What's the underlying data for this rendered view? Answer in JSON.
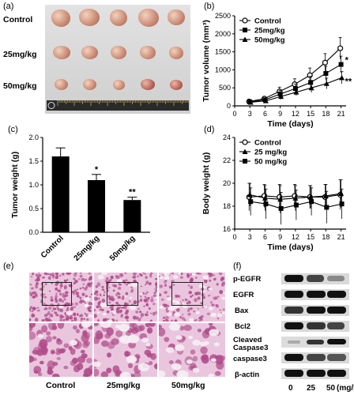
{
  "panels": {
    "a": {
      "label": "(a)",
      "rows": [
        "Control",
        "25mg/kg",
        "50mg/kg"
      ]
    },
    "b": {
      "label": "(b)"
    },
    "c": {
      "label": "(c)"
    },
    "d": {
      "label": "(d)"
    },
    "e": {
      "label": "(e)",
      "groups": [
        "Control",
        "25mg/kg",
        "50mg/kg"
      ]
    },
    "f": {
      "label": "(f)",
      "proteins": [
        "p-EGFR",
        "EGFR",
        "Bax",
        "Bcl2",
        "Cleaved\nCaspase3",
        "caspase3",
        "β-actin"
      ],
      "xticks": [
        "0",
        "25",
        "50"
      ],
      "unit": "(mg/kg)"
    }
  },
  "chart_data": [
    {
      "id": "b",
      "type": "line",
      "xlabel": "Time (days)",
      "ylabel": "Tumor volume (mm³)",
      "x": [
        3,
        6,
        9,
        12,
        15,
        18,
        21
      ],
      "xlim": [
        0,
        22
      ],
      "ylim": [
        0,
        2500
      ],
      "yticks": [
        0,
        500,
        1000,
        1500,
        2000,
        2500
      ],
      "legend_position": "top-left",
      "series": [
        {
          "name": "Control",
          "marker": "open-circle",
          "values": [
            120,
            200,
            400,
            600,
            850,
            1200,
            1600
          ],
          "err": [
            40,
            60,
            120,
            150,
            200,
            250,
            300
          ]
        },
        {
          "name": "25mg/kg",
          "marker": "filled-square",
          "values": [
            110,
            170,
            330,
            480,
            650,
            900,
            1150
          ],
          "err": [
            40,
            50,
            100,
            130,
            170,
            200,
            230
          ]
        },
        {
          "name": "50mg/kg",
          "marker": "filled-triangle",
          "values": [
            100,
            140,
            260,
            380,
            500,
            620,
            780
          ],
          "err": [
            30,
            40,
            80,
            100,
            130,
            150,
            170
          ]
        }
      ],
      "annotations": [
        "*",
        "**"
      ]
    },
    {
      "id": "c",
      "type": "bar",
      "ylabel": "Tumor weight (g)",
      "categories": [
        "Control",
        "25mg/kg",
        "50mg/kg"
      ],
      "values": [
        1.6,
        1.1,
        0.68
      ],
      "err": [
        0.18,
        0.12,
        0.06
      ],
      "ylim": [
        0,
        2.0
      ],
      "yticks": [
        "0.0",
        "0.5",
        "1.0",
        "1.5",
        "2.0"
      ],
      "annotations": [
        "",
        "*",
        "**"
      ]
    },
    {
      "id": "d",
      "type": "line",
      "xlabel": "Time (days)",
      "ylabel": "Body weight (g)",
      "x": [
        3,
        6,
        9,
        12,
        15,
        18,
        21
      ],
      "xlim": [
        0,
        22
      ],
      "ylim": [
        16,
        24
      ],
      "yticks": [
        16,
        18,
        20,
        22,
        24
      ],
      "legend_position": "top-left",
      "series": [
        {
          "name": "Control",
          "marker": "open-circle",
          "values": [
            18.8,
            18.9,
            18.8,
            18.9,
            18.8,
            18.8,
            19.0
          ],
          "err": [
            1.2,
            1.0,
            1.1,
            1.0,
            1.0,
            1.1,
            1.3
          ]
        },
        {
          "name": "25 mg/kg",
          "marker": "filled-triangle",
          "values": [
            19.0,
            18.7,
            18.6,
            18.7,
            18.8,
            18.9,
            19.1
          ],
          "err": [
            1.0,
            1.1,
            1.2,
            1.1,
            1.0,
            1.0,
            1.2
          ]
        },
        {
          "name": "50 mg/kg",
          "marker": "filled-square",
          "values": [
            18.4,
            18.2,
            17.8,
            18.1,
            18.4,
            17.9,
            18.2
          ],
          "err": [
            1.2,
            1.3,
            1.4,
            1.3,
            1.2,
            1.4,
            1.3
          ]
        }
      ]
    }
  ],
  "colors": {
    "he_stain": "#b04c8a",
    "he_light": "#e9c6de",
    "ruler": "#caa85a"
  }
}
